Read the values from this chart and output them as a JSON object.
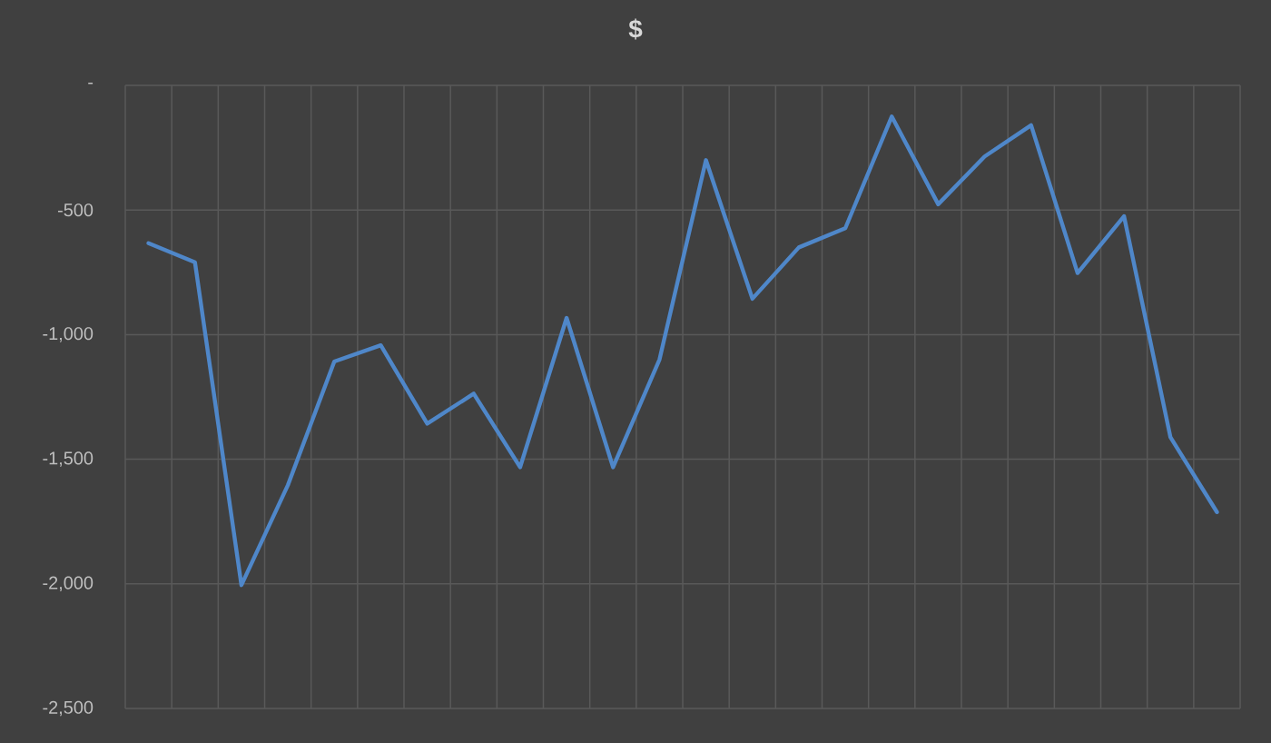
{
  "chart_data": {
    "type": "line",
    "title": "$",
    "categories": [
      null,
      null,
      null,
      null,
      null,
      null,
      null,
      null,
      null,
      null,
      null,
      null,
      null,
      null,
      null,
      null,
      null,
      null,
      null,
      null,
      null,
      null,
      null,
      null
    ],
    "series": [
      {
        "color": "#4f87c9",
        "values": [
          -633,
          -710,
          -2005,
          -1604,
          -1108,
          -1043,
          -1357,
          -1237,
          -1532,
          -933,
          -1532,
          -1100,
          -300,
          -856,
          -650,
          -573,
          -125,
          -477,
          -285,
          -160,
          -753,
          -525,
          -1412,
          -1712
        ]
      }
    ],
    "ylim": [
      -2500,
      0
    ],
    "yticks": [
      {
        "value": 0,
        "label": "-"
      },
      -500,
      {
        "value": -1000,
        "label": "-1,000"
      },
      {
        "value": -1500,
        "label": "-1,500"
      },
      {
        "value": -2000,
        "label": "-2,000"
      },
      {
        "value": -2500,
        "label": "-2,500"
      }
    ],
    "grid": true,
    "marker": "none",
    "line_style": "solid"
  }
}
